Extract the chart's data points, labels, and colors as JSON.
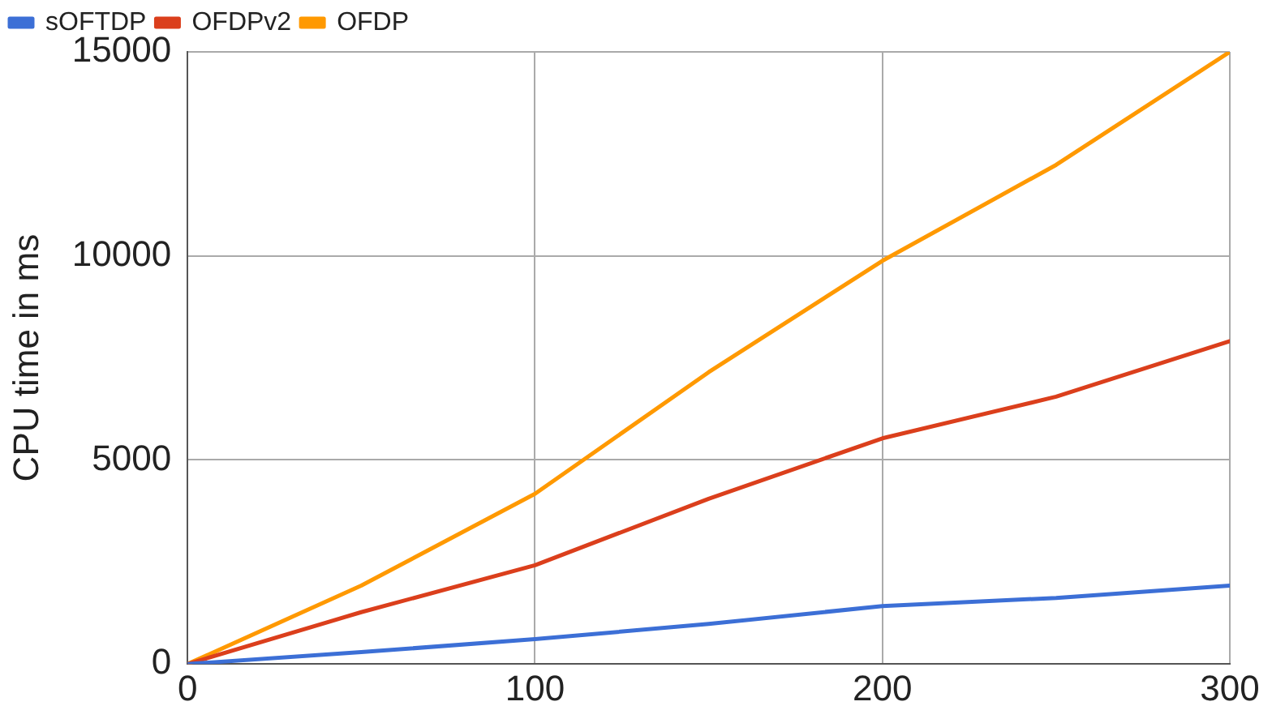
{
  "chart_data": {
    "type": "line",
    "ylabel": "CPU time in ms",
    "x": [
      0,
      50,
      100,
      150,
      200,
      250,
      300
    ],
    "series": [
      {
        "name": "sOFTDP",
        "color": "#3c6fd6",
        "values": [
          0,
          290,
          610,
          980,
          1420,
          1620,
          1920
        ]
      },
      {
        "name": "OFDPv2",
        "color": "#db3f1c",
        "values": [
          0,
          1270,
          2420,
          4050,
          5530,
          6550,
          7910
        ]
      },
      {
        "name": "OFDP",
        "color": "#ff9900",
        "values": [
          0,
          1920,
          4170,
          7150,
          9880,
          12230,
          15000
        ]
      }
    ],
    "xlim": [
      0,
      300
    ],
    "xticks": [
      0,
      100,
      200,
      300
    ],
    "ylim": [
      0,
      15000
    ],
    "yticks": [
      0,
      5000,
      10000,
      15000
    ],
    "grid": true,
    "legend": "top",
    "marker": "none",
    "line_style": "solid"
  }
}
